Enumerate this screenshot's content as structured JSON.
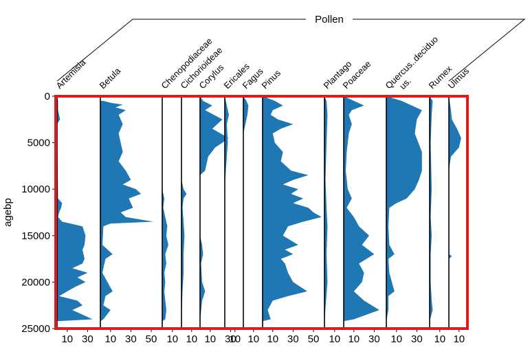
{
  "chart_data": {
    "type": "area",
    "group_label": "Pollen",
    "ylabel": "agebp",
    "ylim": [
      0,
      25000
    ],
    "yticks": [
      0,
      5000,
      10000,
      15000,
      20000,
      25000
    ],
    "series_color": "#1f77b4",
    "frame_color": "#e01a1a",
    "series": [
      {
        "name": "Artemisia",
        "xticks": [
          10,
          30
        ],
        "max": 40,
        "points": [
          [
            0,
            0
          ],
          [
            500,
            1
          ],
          [
            1500,
            1
          ],
          [
            2500,
            3
          ],
          [
            3000,
            0
          ],
          [
            11000,
            1
          ],
          [
            11500,
            5
          ],
          [
            12000,
            4
          ],
          [
            12500,
            2
          ],
          [
            13000,
            1
          ],
          [
            13500,
            5
          ],
          [
            14000,
            25
          ],
          [
            15000,
            28
          ],
          [
            16000,
            27
          ],
          [
            16500,
            25
          ],
          [
            17500,
            27
          ],
          [
            18000,
            25
          ],
          [
            18500,
            15
          ],
          [
            19000,
            30
          ],
          [
            19500,
            20
          ],
          [
            20000,
            28
          ],
          [
            20500,
            18
          ],
          [
            21000,
            10
          ],
          [
            21500,
            2
          ],
          [
            22000,
            20
          ],
          [
            22500,
            25
          ],
          [
            23000,
            15
          ],
          [
            24000,
            35
          ],
          [
            24200,
            0
          ]
        ]
      },
      {
        "name": "Betula",
        "xticks": [
          10,
          30,
          50
        ],
        "max": 60,
        "points": [
          [
            500,
            3
          ],
          [
            700,
            10
          ],
          [
            900,
            22
          ],
          [
            1200,
            15
          ],
          [
            1500,
            25
          ],
          [
            2000,
            18
          ],
          [
            3000,
            22
          ],
          [
            4000,
            18
          ],
          [
            5000,
            20
          ],
          [
            6000,
            22
          ],
          [
            7000,
            18
          ],
          [
            8000,
            25
          ],
          [
            9000,
            30
          ],
          [
            9500,
            22
          ],
          [
            10000,
            35
          ],
          [
            10500,
            40
          ],
          [
            11000,
            28
          ],
          [
            11500,
            30
          ],
          [
            12000,
            32
          ],
          [
            12500,
            20
          ],
          [
            13000,
            25
          ],
          [
            13500,
            52
          ],
          [
            13700,
            10
          ],
          [
            14000,
            3
          ],
          [
            16000,
            2
          ],
          [
            17000,
            12
          ],
          [
            17500,
            5
          ],
          [
            19000,
            2
          ],
          [
            21000,
            12
          ],
          [
            21500,
            5
          ],
          [
            22500,
            3
          ],
          [
            23000,
            10
          ],
          [
            24000,
            3
          ],
          [
            24200,
            0
          ]
        ]
      },
      {
        "name": "Chenopodiaceae",
        "xticks": [
          10
        ],
        "max": 20,
        "points": [
          [
            0,
            0
          ],
          [
            10000,
            0
          ],
          [
            11000,
            2
          ],
          [
            12000,
            1
          ],
          [
            13000,
            3
          ],
          [
            14000,
            5
          ],
          [
            15000,
            4
          ],
          [
            16000,
            6
          ],
          [
            17000,
            3
          ],
          [
            18000,
            4
          ],
          [
            19000,
            2
          ],
          [
            20000,
            3
          ],
          [
            21000,
            2
          ],
          [
            23000,
            4
          ],
          [
            24000,
            3
          ],
          [
            24200,
            0
          ]
        ]
      },
      {
        "name": "Cichorioideae",
        "xticks": [
          10
        ],
        "max": 20,
        "points": [
          [
            0,
            0
          ],
          [
            9000,
            0
          ],
          [
            10000,
            2
          ],
          [
            10500,
            5
          ],
          [
            11000,
            2
          ],
          [
            12000,
            1
          ],
          [
            13500,
            2
          ],
          [
            15000,
            3
          ],
          [
            17000,
            2
          ],
          [
            19000,
            2
          ],
          [
            21000,
            1
          ],
          [
            24200,
            0
          ]
        ]
      },
      {
        "name": "Corylus",
        "xticks": [
          10,
          30
        ],
        "max": 40,
        "points": [
          [
            0,
            0
          ],
          [
            500,
            3
          ],
          [
            1000,
            12
          ],
          [
            1500,
            5
          ],
          [
            2500,
            22
          ],
          [
            3500,
            12
          ],
          [
            4500,
            28
          ],
          [
            5000,
            22
          ],
          [
            5500,
            15
          ],
          [
            6500,
            8
          ],
          [
            8000,
            5
          ],
          [
            8500,
            0
          ],
          [
            15000,
            0
          ],
          [
            16000,
            2
          ],
          [
            17000,
            3
          ],
          [
            18000,
            1
          ],
          [
            20000,
            2
          ],
          [
            21000,
            5
          ],
          [
            22000,
            2
          ],
          [
            24200,
            0
          ]
        ]
      },
      {
        "name": "Ericales",
        "xticks": [
          10
        ],
        "max": 20,
        "points": [
          [
            0,
            0
          ],
          [
            1000,
            2
          ],
          [
            2000,
            4
          ],
          [
            3000,
            2
          ],
          [
            5000,
            3
          ],
          [
            8000,
            1
          ],
          [
            10000,
            0
          ],
          [
            24200,
            0
          ]
        ]
      },
      {
        "name": "Fagus",
        "xticks": [
          10
        ],
        "max": 20,
        "points": [
          [
            0,
            0
          ],
          [
            500,
            3
          ],
          [
            1000,
            5
          ],
          [
            2000,
            4
          ],
          [
            3000,
            2
          ],
          [
            4000,
            0
          ],
          [
            24200,
            0
          ]
        ]
      },
      {
        "name": "Pinus",
        "xticks": [
          10,
          30,
          50
        ],
        "max": 60,
        "points": [
          [
            0,
            0
          ],
          [
            500,
            12
          ],
          [
            1000,
            20
          ],
          [
            1500,
            10
          ],
          [
            2000,
            8
          ],
          [
            2500,
            15
          ],
          [
            3000,
            30
          ],
          [
            3500,
            18
          ],
          [
            4000,
            10
          ],
          [
            5000,
            12
          ],
          [
            6000,
            20
          ],
          [
            7000,
            18
          ],
          [
            8000,
            28
          ],
          [
            8500,
            45
          ],
          [
            9000,
            30
          ],
          [
            9500,
            20
          ],
          [
            10000,
            35
          ],
          [
            10500,
            28
          ],
          [
            11000,
            40
          ],
          [
            11500,
            30
          ],
          [
            12000,
            45
          ],
          [
            12500,
            50
          ],
          [
            13000,
            58
          ],
          [
            13500,
            40
          ],
          [
            14000,
            25
          ],
          [
            15000,
            20
          ],
          [
            16000,
            35
          ],
          [
            16500,
            22
          ],
          [
            17000,
            30
          ],
          [
            17500,
            18
          ],
          [
            18000,
            22
          ],
          [
            19000,
            25
          ],
          [
            20000,
            30
          ],
          [
            21000,
            44
          ],
          [
            21500,
            25
          ],
          [
            22000,
            10
          ],
          [
            23000,
            5
          ],
          [
            24000,
            8
          ],
          [
            24200,
            0
          ]
        ]
      },
      {
        "name": "Plantago",
        "xticks": [
          10
        ],
        "max": 20,
        "points": [
          [
            0,
            0
          ],
          [
            500,
            2
          ],
          [
            2000,
            3
          ],
          [
            5000,
            2
          ],
          [
            9000,
            1
          ],
          [
            12000,
            2
          ],
          [
            14000,
            3
          ],
          [
            17000,
            2
          ],
          [
            20000,
            3
          ],
          [
            24200,
            0
          ]
        ]
      },
      {
        "name": "Poaceae",
        "xticks": [
          10,
          30
        ],
        "max": 40,
        "points": [
          [
            0,
            0
          ],
          [
            500,
            10
          ],
          [
            1000,
            20
          ],
          [
            1500,
            8
          ],
          [
            2000,
            5
          ],
          [
            3000,
            8
          ],
          [
            4000,
            5
          ],
          [
            6000,
            3
          ],
          [
            8000,
            2
          ],
          [
            10000,
            4
          ],
          [
            11000,
            8
          ],
          [
            12000,
            3
          ],
          [
            13000,
            10
          ],
          [
            14000,
            15
          ],
          [
            15000,
            25
          ],
          [
            16000,
            18
          ],
          [
            17000,
            30
          ],
          [
            18000,
            15
          ],
          [
            19000,
            20
          ],
          [
            20000,
            18
          ],
          [
            21000,
            10
          ],
          [
            22000,
            20
          ],
          [
            23000,
            35
          ],
          [
            24000,
            10
          ],
          [
            24200,
            0
          ]
        ]
      },
      {
        "name": "Quercus..deciduous.",
        "xticks": [
          10,
          30
        ],
        "max": 40,
        "points": [
          [
            0,
            0
          ],
          [
            500,
            15
          ],
          [
            1000,
            25
          ],
          [
            1500,
            35
          ],
          [
            2500,
            30
          ],
          [
            4000,
            28
          ],
          [
            6000,
            35
          ],
          [
            8000,
            35
          ],
          [
            9000,
            32
          ],
          [
            10000,
            28
          ],
          [
            11000,
            20
          ],
          [
            11500,
            10
          ],
          [
            12000,
            3
          ],
          [
            14000,
            2
          ],
          [
            16000,
            3
          ],
          [
            17000,
            8
          ],
          [
            17500,
            2
          ],
          [
            19000,
            3
          ],
          [
            21000,
            8
          ],
          [
            21500,
            2
          ],
          [
            23000,
            2
          ],
          [
            24200,
            0
          ]
        ]
      },
      {
        "name": "Rumex",
        "xticks": [
          10
        ],
        "max": 20,
        "points": [
          [
            0,
            0
          ],
          [
            500,
            3
          ],
          [
            2000,
            2
          ],
          [
            5000,
            1
          ],
          [
            10000,
            2
          ],
          [
            13000,
            1
          ],
          [
            15000,
            2
          ],
          [
            17000,
            1
          ],
          [
            20000,
            1
          ],
          [
            22000,
            2
          ],
          [
            23000,
            3
          ],
          [
            24200,
            0
          ]
        ]
      },
      {
        "name": "Ulmus",
        "xticks": [
          10
        ],
        "max": 20,
        "points": [
          [
            0,
            0
          ],
          [
            1500,
            2
          ],
          [
            2500,
            3
          ],
          [
            3500,
            8
          ],
          [
            4500,
            12
          ],
          [
            5500,
            10
          ],
          [
            6500,
            2
          ],
          [
            8000,
            0
          ],
          [
            17000,
            0
          ],
          [
            17200,
            3
          ],
          [
            17500,
            0
          ],
          [
            24200,
            0
          ]
        ]
      }
    ]
  }
}
